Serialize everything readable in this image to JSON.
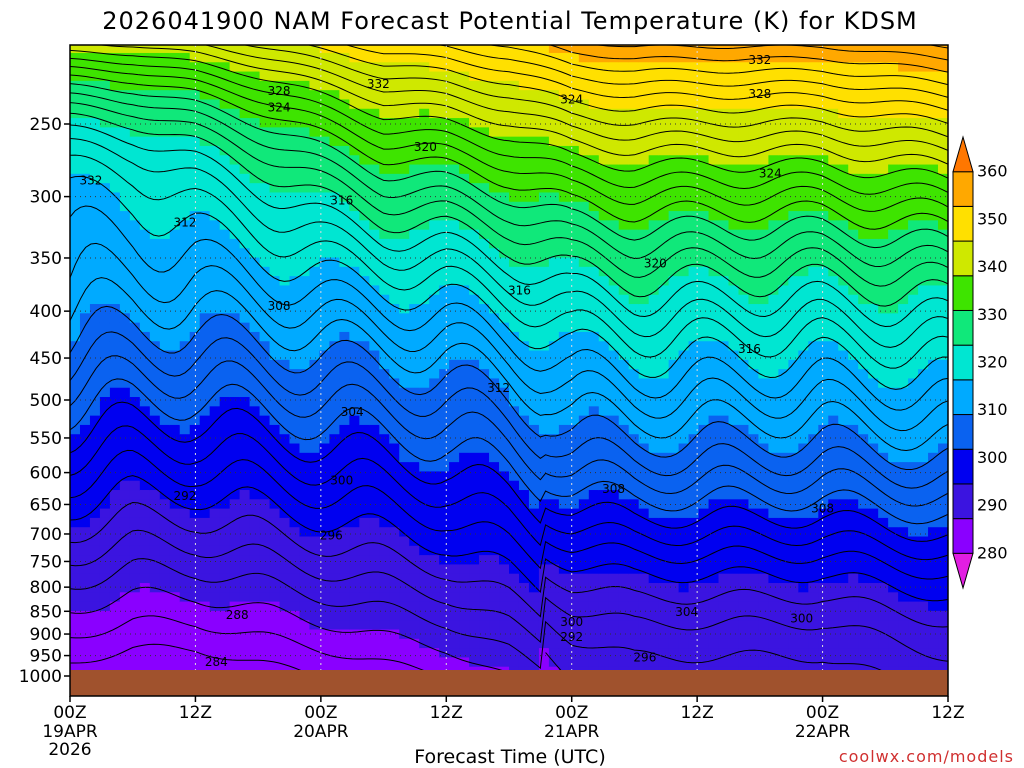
{
  "chart_data": {
    "type": "heatmap",
    "title": "2026041900 NAM Forecast Potential Temperature (K) for KDSM",
    "xlabel": "Forecast Time (UTC)",
    "ylabel": "",
    "x_ticks": [
      {
        "label": "00Z",
        "sub1": "19APR",
        "sub2": "2026",
        "hours": 0
      },
      {
        "label": "12Z",
        "sub1": "",
        "sub2": "",
        "hours": 12
      },
      {
        "label": "00Z",
        "sub1": "20APR",
        "sub2": "",
        "hours": 24
      },
      {
        "label": "12Z",
        "sub1": "",
        "sub2": "",
        "hours": 36
      },
      {
        "label": "00Z",
        "sub1": "21APR",
        "sub2": "",
        "hours": 48
      },
      {
        "label": "12Z",
        "sub1": "",
        "sub2": "",
        "hours": 60
      },
      {
        "label": "00Z",
        "sub1": "22APR",
        "sub2": "",
        "hours": 72
      },
      {
        "label": "12Z",
        "sub1": "",
        "sub2": "",
        "hours": 84
      }
    ],
    "y_ticks": [
      250,
      300,
      350,
      400,
      450,
      500,
      550,
      600,
      650,
      700,
      750,
      800,
      850,
      900,
      950,
      1000
    ],
    "xlim_hours": [
      0,
      84
    ],
    "ylim_hPa": [
      200,
      1000
    ],
    "y_scale": "log-pressure",
    "colorbar": {
      "ticks": [
        280,
        290,
        300,
        310,
        320,
        330,
        340,
        350,
        360
      ],
      "colors": [
        "#e21ee2",
        "#8a00ff",
        "#3b14e0",
        "#0000f0",
        "#0a62f0",
        "#00aaff",
        "#00e6d2",
        "#10e87a",
        "#3ee400",
        "#cfe800",
        "#ffe000",
        "#ffa800",
        "#ff7700"
      ]
    },
    "contour_labels": [
      {
        "text": "332",
        "h": 2.0,
        "p": 288
      },
      {
        "text": "328",
        "h": 20.0,
        "p": 230
      },
      {
        "text": "324",
        "h": 20.0,
        "p": 240
      },
      {
        "text": "332",
        "h": 29.5,
        "p": 226
      },
      {
        "text": "320",
        "h": 34.0,
        "p": 265
      },
      {
        "text": "316",
        "h": 26.0,
        "p": 303
      },
      {
        "text": "312",
        "h": 11.0,
        "p": 320
      },
      {
        "text": "308",
        "h": 20.0,
        "p": 395
      },
      {
        "text": "304",
        "h": 27.0,
        "p": 515
      },
      {
        "text": "300",
        "h": 26.0,
        "p": 612
      },
      {
        "text": "296",
        "h": 25.0,
        "p": 703
      },
      {
        "text": "292",
        "h": 11.0,
        "p": 636
      },
      {
        "text": "288",
        "h": 16.0,
        "p": 858
      },
      {
        "text": "284",
        "h": 14.0,
        "p": 965
      },
      {
        "text": "332",
        "h": 66.0,
        "p": 213
      },
      {
        "text": "328",
        "h": 66.0,
        "p": 232
      },
      {
        "text": "324",
        "h": 48.0,
        "p": 235
      },
      {
        "text": "324",
        "h": 67.0,
        "p": 283
      },
      {
        "text": "320",
        "h": 56.0,
        "p": 355
      },
      {
        "text": "316",
        "h": 43.0,
        "p": 380
      },
      {
        "text": "316",
        "h": 65.0,
        "p": 440
      },
      {
        "text": "312",
        "h": 41.0,
        "p": 485
      },
      {
        "text": "308",
        "h": 52.0,
        "p": 625
      },
      {
        "text": "308",
        "h": 72.0,
        "p": 657
      },
      {
        "text": "304",
        "h": 59.0,
        "p": 852
      },
      {
        "text": "300",
        "h": 48.0,
        "p": 873
      },
      {
        "text": "300",
        "h": 70.0,
        "p": 865
      },
      {
        "text": "292",
        "h": 48.0,
        "p": 907
      },
      {
        "text": "296",
        "h": 55.0,
        "p": 955
      }
    ],
    "ground_color": "#a0522d",
    "credit": "coolwx.com/models"
  }
}
